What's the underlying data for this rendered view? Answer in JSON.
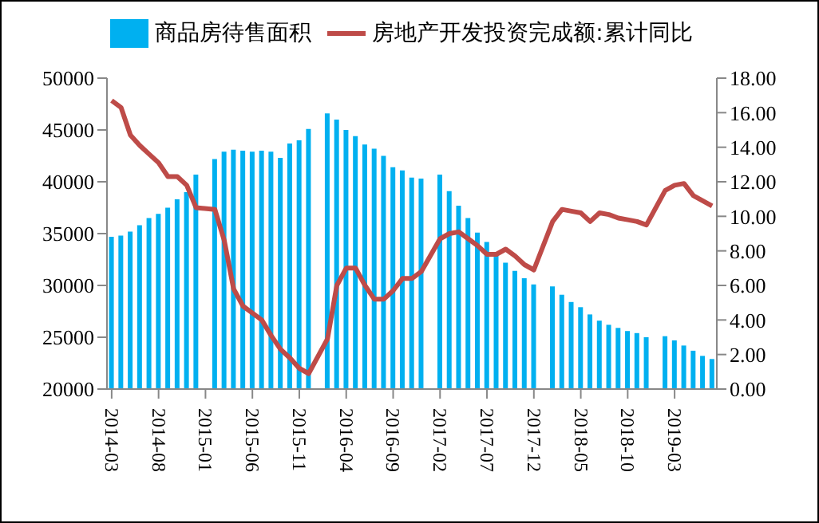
{
  "chart_data": {
    "type": "bar",
    "categories": [
      "2014-03",
      null,
      null,
      null,
      null,
      "2014-08",
      null,
      null,
      null,
      null,
      "2015-01",
      null,
      null,
      null,
      null,
      "2015-06",
      null,
      null,
      null,
      null,
      "2015-11",
      null,
      null,
      null,
      null,
      "2016-04",
      null,
      null,
      null,
      null,
      "2016-09",
      null,
      null,
      null,
      null,
      "2017-02",
      null,
      null,
      null,
      null,
      "2017-07",
      null,
      null,
      null,
      null,
      "2017-12",
      null,
      null,
      null,
      null,
      "2018-05",
      null,
      null,
      null,
      null,
      "2018-10",
      null,
      null,
      null,
      null,
      "2019-03",
      null,
      null,
      null,
      null
    ],
    "series": [
      {
        "name": "商品房待售面积",
        "color": "#00b0f0",
        "values": [
          34700,
          34800,
          35200,
          35800,
          36500,
          36900,
          37500,
          38300,
          39000,
          40700,
          null,
          42200,
          42900,
          43100,
          43000,
          42900,
          43000,
          42900,
          42300,
          43700,
          44000,
          45100,
          null,
          46600,
          46000,
          45000,
          44400,
          43600,
          43200,
          42500,
          41400,
          41100,
          40400,
          40300,
          null,
          40700,
          39100,
          37700,
          36500,
          35100,
          34200,
          33200,
          32200,
          31400,
          30700,
          30100,
          null,
          29900,
          29100,
          28400,
          27900,
          27200,
          26600,
          26200,
          25900,
          25600,
          25400,
          25000,
          null,
          25100,
          24700,
          24200,
          23700,
          23200,
          22900
        ]
      },
      {
        "name": "房地产开发投资完成额:累计同比",
        "type": "line",
        "axis": "y2",
        "color": "#be4b48",
        "values": [
          16.7,
          16.3,
          14.7,
          14.1,
          13.6,
          13.1,
          12.3,
          12.3,
          11.8,
          10.5,
          null,
          10.4,
          8.6,
          5.8,
          4.8,
          4.4,
          4.0,
          3.1,
          2.3,
          1.8,
          1.2,
          0.9,
          null,
          2.9,
          6.0,
          7.0,
          7.0,
          6.0,
          5.2,
          5.2,
          5.7,
          6.4,
          6.4,
          6.8,
          null,
          8.7,
          9.0,
          9.1,
          8.7,
          8.3,
          7.8,
          7.8,
          8.1,
          7.7,
          7.2,
          6.9,
          null,
          9.7,
          10.4,
          10.3,
          10.2,
          9.7,
          10.2,
          10.1,
          9.9,
          9.8,
          9.7,
          9.5,
          null,
          11.5,
          11.8,
          11.9,
          11.2,
          10.9,
          10.6
        ]
      }
    ],
    "ylim": [
      20000,
      50000
    ],
    "yticks": [
      20000,
      25000,
      30000,
      35000,
      40000,
      45000,
      50000
    ],
    "y2lim": [
      0,
      18
    ],
    "y2ticks": [
      {
        "value": 0,
        "label": "0.00"
      },
      {
        "value": 2,
        "label": "2.00"
      },
      {
        "value": 4,
        "label": "4.00"
      },
      {
        "value": 6,
        "label": "6.00"
      },
      {
        "value": 8,
        "label": "8.00"
      },
      {
        "value": 10,
        "label": "10.00"
      },
      {
        "value": 12,
        "label": "12.00"
      },
      {
        "value": 14,
        "label": "14.00"
      },
      {
        "value": 16,
        "label": "16.00"
      },
      {
        "value": 18,
        "label": "18.00"
      }
    ],
    "legend": "top",
    "grid": false
  }
}
